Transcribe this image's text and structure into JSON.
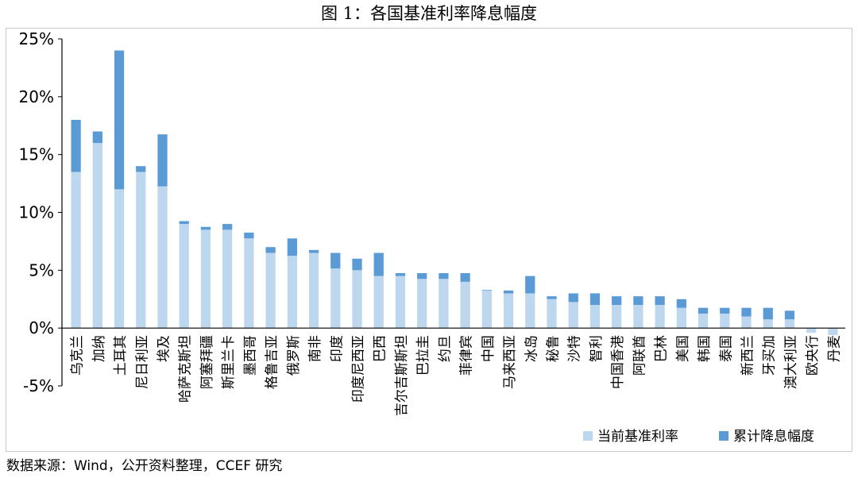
{
  "title": "图 1：各国基准利率降息幅度",
  "source": "数据来源：Wind，公开资料整理，CCEF 研究",
  "chart_data": {
    "type": "bar",
    "stacked": true,
    "categories": [
      "乌克兰",
      "加纳",
      "土耳其",
      "尼日利亚",
      "埃及",
      "哈萨克斯坦",
      "阿塞拜疆",
      "斯里兰卡",
      "墨西哥",
      "格鲁吉亚",
      "俄罗斯",
      "南非",
      "印度",
      "印度尼西亚",
      "巴西",
      "吉尔吉斯斯坦",
      "巴拉圭",
      "约旦",
      "菲律宾",
      "中国",
      "马来西亚",
      "冰岛",
      "秘鲁",
      "沙特",
      "智利",
      "中国香港",
      "阿联酋",
      "巴林",
      "美国",
      "韩国",
      "泰国",
      "新西兰",
      "牙买加",
      "澳大利亚",
      "欧央行",
      "丹麦"
    ],
    "series": [
      {
        "name": "当前基准利率",
        "color": "#bdd7ee",
        "values": [
          13.5,
          16,
          12,
          13.5,
          12.25,
          9,
          8.5,
          8.5,
          7.75,
          6.5,
          6.25,
          6.5,
          5.15,
          5,
          4.5,
          4.5,
          4.25,
          4.25,
          4,
          3.25,
          3,
          3,
          2.5,
          2.25,
          2,
          2,
          2,
          2,
          1.75,
          1.25,
          1.25,
          1,
          0.75,
          0.75,
          -0.4,
          -0.6
        ]
      },
      {
        "name": "累计降息幅度",
        "color": "#5b9bd5",
        "values": [
          4.5,
          1,
          12,
          0.5,
          4.5,
          0.25,
          0.25,
          0.5,
          0.5,
          0.5,
          1.5,
          0.25,
          1.35,
          1,
          2,
          0.25,
          0.5,
          0.5,
          0.75,
          0.05,
          0.25,
          1.5,
          0.25,
          0.75,
          1,
          0.75,
          0.75,
          0.75,
          0.75,
          0.5,
          0.5,
          0.75,
          1,
          0.75,
          0,
          0
        ]
      }
    ],
    "y_ticks": [
      "-5%",
      "0%",
      "5%",
      "10%",
      "15%",
      "20%",
      "25%"
    ],
    "ylim": [
      -5,
      25
    ],
    "legend_position": "bottom-right",
    "grid": false
  }
}
